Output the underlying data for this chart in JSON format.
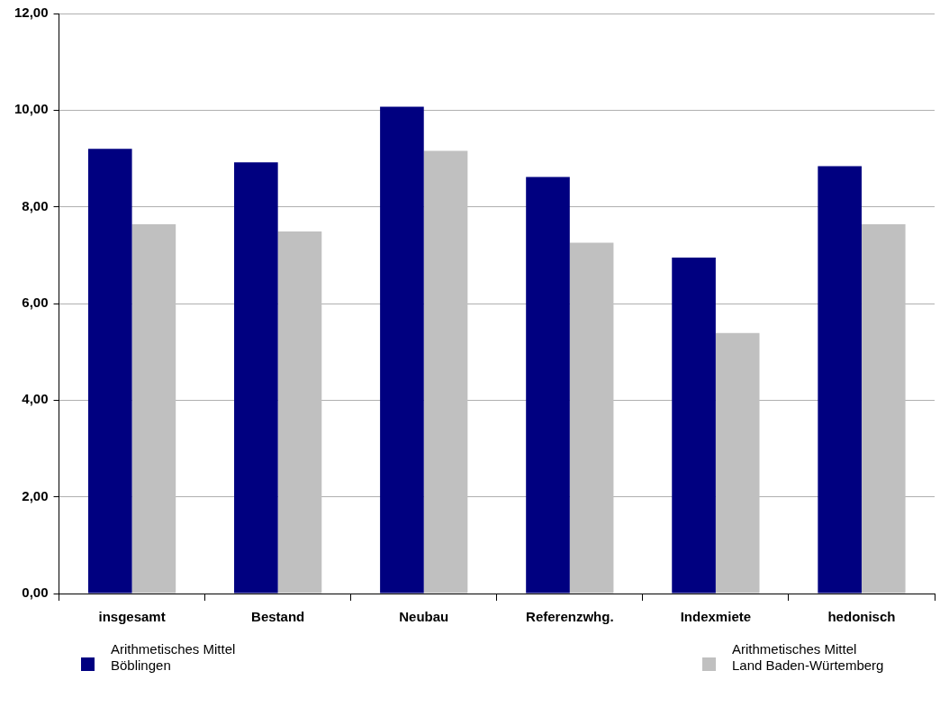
{
  "chart_data": {
    "type": "bar",
    "categories": [
      "insgesamt",
      "Bestand",
      "Neubau",
      "Referenzwhg.",
      "Indexmiete",
      "hedonisch"
    ],
    "series": [
      {
        "name": "Arithmetisches Mittel Böblingen",
        "color": "#000080",
        "values": [
          9.2,
          8.92,
          10.07,
          8.62,
          6.95,
          8.84
        ]
      },
      {
        "name": "Arithmetisches Mittel Land Baden-Würtemberg",
        "color": "#c0c0c0",
        "values": [
          7.64,
          7.49,
          9.16,
          7.26,
          5.39,
          7.64
        ]
      }
    ],
    "ylim": [
      0,
      12
    ],
    "yticks": [
      {
        "value": 0,
        "label": "0,00"
      },
      {
        "value": 2,
        "label": "2,00"
      },
      {
        "value": 4,
        "label": "4,00"
      },
      {
        "value": 6,
        "label": "6,00"
      },
      {
        "value": 8,
        "label": "8,00"
      },
      {
        "value": 10,
        "label": "10,00"
      },
      {
        "value": 12,
        "label": "12,00"
      }
    ],
    "grid": "y",
    "legend": "bottom"
  }
}
